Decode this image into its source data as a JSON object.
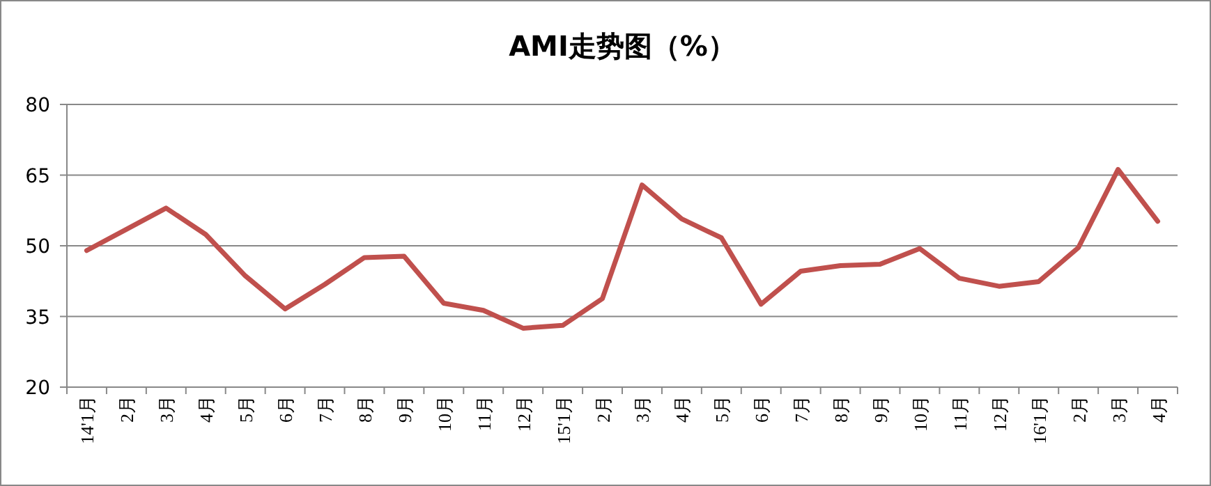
{
  "chart_data": {
    "type": "line",
    "title": "AMI走势图（%）",
    "categories": [
      "14'1月",
      "2月",
      "3月",
      "4月",
      "5月",
      "6月",
      "7月",
      "8月",
      "9月",
      "10月",
      "11月",
      "12月",
      "15'1月",
      "2月",
      "3月",
      "4月",
      "5月",
      "6月",
      "7月",
      "8月",
      "9月",
      "10月",
      "11月",
      "12月",
      "16'1月",
      "2月",
      "3月",
      "4月"
    ],
    "series": [
      {
        "color": "#c0504d",
        "values": [
          49,
          53.5,
          58,
          52.4,
          43.6,
          36.6,
          41.8,
          47.5,
          47.8,
          37.8,
          36.3,
          32.5,
          33.1,
          38.8,
          62.9,
          55.7,
          51.7,
          37.6,
          44.6,
          45.8,
          46.1,
          49.4,
          43.1,
          41.4,
          42.4,
          49.6,
          66.2,
          55.2
        ]
      }
    ],
    "ylim": [
      20,
      80
    ],
    "yticks": [
      20,
      35,
      50,
      65,
      80
    ],
    "grid": "y",
    "marker": "none",
    "line_style": "solid"
  }
}
